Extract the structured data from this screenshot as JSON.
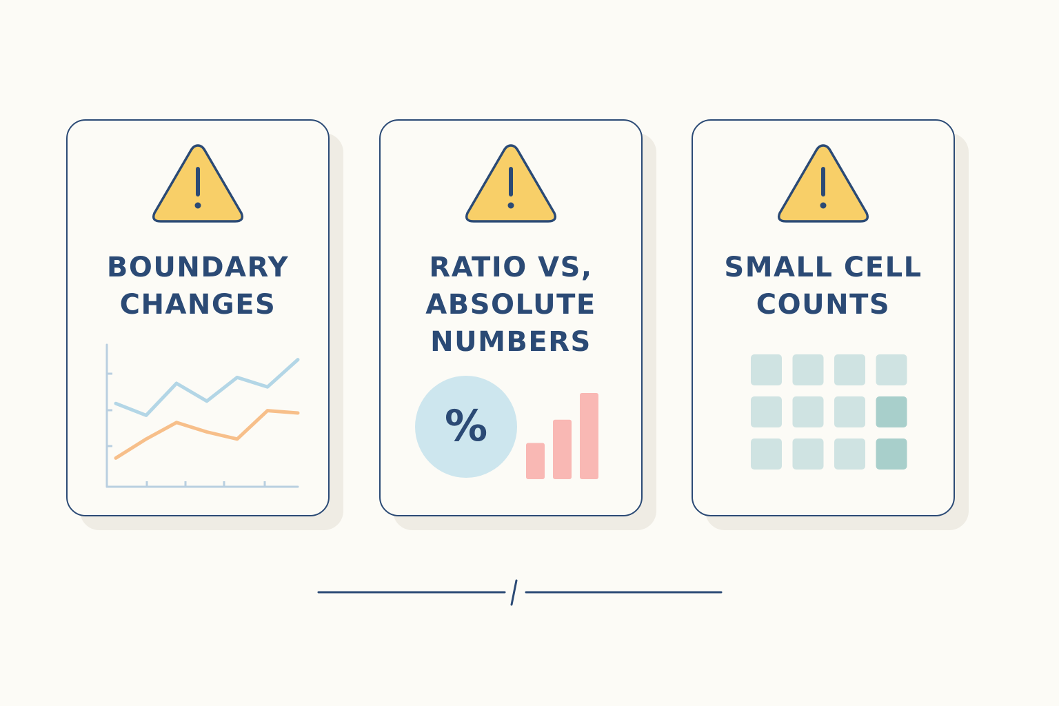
{
  "colors": {
    "background": "#fcfbf6",
    "card_border": "#2b4a75",
    "title_text": "#2b4a75",
    "warning_fill": "#f8cf68",
    "line_series_blue": "#b3d6e6",
    "line_series_orange": "#f7bf8a",
    "percent_circle": "#cde6ee",
    "bars": "#f9b8b4",
    "grid_cell": "#cfe3e2",
    "grid_cell_dark": "#a8cfcb"
  },
  "cards": [
    {
      "title": "BOUNDARY\nCHANGES",
      "icon": "warning-icon",
      "illustration": "line-chart",
      "chart_data": {
        "type": "line",
        "x": [
          1,
          2,
          3,
          4,
          5,
          6,
          7
        ],
        "series": [
          {
            "values": [
              58,
              48,
              75,
              60,
              80,
              72,
              95
            ]
          },
          {
            "values": [
              12,
              28,
              42,
              34,
              28,
              52,
              50
            ]
          }
        ]
      }
    },
    {
      "title": "RATIO VS,\nABSOLUTE\nNUMBERS",
      "icon": "warning-icon",
      "illustration": "percent-and-bars",
      "percent_symbol": "%",
      "chart_data": {
        "type": "bar",
        "values": [
          0.42,
          0.69,
          1.0
        ]
      }
    },
    {
      "title": "SMALL CELL\nCOUNTS",
      "icon": "warning-icon",
      "illustration": "cell-grid",
      "grid": {
        "rows": 3,
        "cols": 4,
        "dark_cells": [
          [
            1,
            3
          ],
          [
            2,
            3
          ]
        ]
      }
    }
  ]
}
